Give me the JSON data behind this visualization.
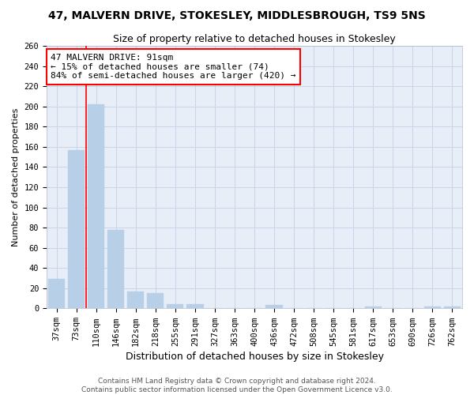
{
  "title": "47, MALVERN DRIVE, STOKESLEY, MIDDLESBROUGH, TS9 5NS",
  "subtitle": "Size of property relative to detached houses in Stokesley",
  "xlabel": "Distribution of detached houses by size in Stokesley",
  "ylabel": "Number of detached properties",
  "bar_color": "#b8cfe8",
  "bar_edgecolor": "#b8cfe8",
  "grid_color": "#c8d4e8",
  "background_color": "#e8eef8",
  "categories": [
    "37sqm",
    "73sqm",
    "110sqm",
    "146sqm",
    "182sqm",
    "218sqm",
    "255sqm",
    "291sqm",
    "327sqm",
    "363sqm",
    "400sqm",
    "436sqm",
    "472sqm",
    "508sqm",
    "545sqm",
    "581sqm",
    "617sqm",
    "653sqm",
    "690sqm",
    "726sqm",
    "762sqm"
  ],
  "values": [
    29,
    157,
    202,
    78,
    17,
    15,
    4,
    4,
    0,
    0,
    0,
    3,
    0,
    0,
    0,
    0,
    2,
    0,
    0,
    2,
    2
  ],
  "ylim": [
    0,
    260
  ],
  "yticks": [
    0,
    20,
    40,
    60,
    80,
    100,
    120,
    140,
    160,
    180,
    200,
    220,
    240,
    260
  ],
  "red_line_x": 1.5,
  "annotation_title": "47 MALVERN DRIVE: 91sqm",
  "annotation_line1": "← 15% of detached houses are smaller (74)",
  "annotation_line2": "84% of semi-detached houses are larger (420) →",
  "footer_line1": "Contains HM Land Registry data © Crown copyright and database right 2024.",
  "footer_line2": "Contains public sector information licensed under the Open Government Licence v3.0.",
  "title_fontsize": 10,
  "subtitle_fontsize": 9,
  "xlabel_fontsize": 9,
  "ylabel_fontsize": 8,
  "tick_fontsize": 7.5,
  "annotation_fontsize": 8,
  "footer_fontsize": 6.5
}
